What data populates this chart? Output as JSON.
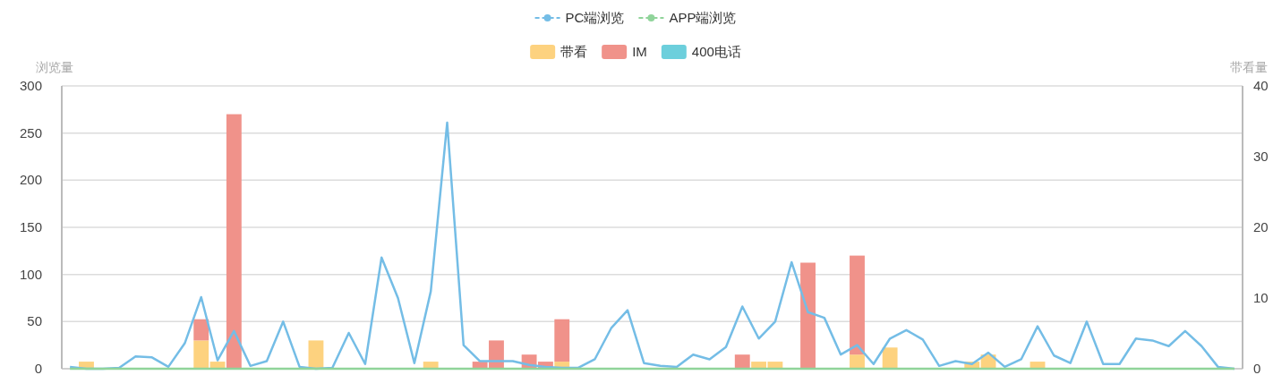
{
  "chart_data": {
    "type": "bar",
    "ylabel": "浏览量",
    "y2label": "带看量",
    "categories": [
      null,
      null,
      null,
      null,
      null,
      null,
      null,
      null,
      null,
      null,
      null,
      null,
      null,
      null,
      null,
      null,
      null,
      null,
      null,
      null,
      null,
      null,
      null,
      null,
      null,
      null,
      null,
      null,
      null,
      null,
      null,
      null,
      null,
      null,
      null,
      null,
      null,
      null,
      null,
      null,
      null,
      null,
      null,
      null,
      null,
      null,
      null,
      null,
      null,
      null,
      null,
      null,
      null,
      null,
      null,
      null,
      null,
      null,
      null,
      null,
      null,
      null,
      null,
      null,
      null,
      null,
      null,
      null,
      null,
      null,
      null,
      null
    ],
    "ylim": [
      0,
      300
    ],
    "yticks": [
      0,
      50,
      100,
      150,
      200,
      250,
      300
    ],
    "y2lim": [
      0,
      40
    ],
    "y2ticks": [
      0,
      10,
      20,
      30,
      40
    ],
    "grid": "y",
    "legend": "top",
    "stacked": true,
    "series": [
      {
        "name": "PC端浏览",
        "type": "line",
        "color": "#74bde6",
        "values": [
          2,
          0,
          0,
          1,
          13,
          12,
          2,
          27,
          76,
          9,
          40,
          3,
          8,
          50,
          2,
          0,
          1,
          38,
          5,
          118,
          75,
          6,
          82,
          261,
          25,
          8,
          8,
          8,
          4,
          2,
          1,
          1,
          10,
          43,
          62,
          6,
          3,
          2,
          15,
          10,
          23,
          66,
          32,
          50,
          113,
          60,
          54,
          15,
          25,
          5,
          32,
          41,
          31,
          3,
          8,
          5,
          17,
          2,
          10,
          45,
          14,
          6,
          50,
          5,
          5,
          32,
          30,
          24,
          40,
          24,
          2,
          0
        ]
      },
      {
        "name": "APP端浏览",
        "type": "line",
        "color": "#90d49a",
        "values": [
          0,
          0,
          0,
          0,
          0,
          0,
          0,
          0,
          0,
          0,
          0,
          0,
          0,
          0,
          0,
          0,
          0,
          0,
          0,
          0,
          0,
          0,
          0,
          0,
          0,
          0,
          0,
          0,
          0,
          0,
          0,
          0,
          0,
          0,
          0,
          0,
          0,
          0,
          0,
          0,
          0,
          0,
          0,
          0,
          0,
          0,
          0,
          0,
          0,
          0,
          0,
          0,
          0,
          0,
          0,
          0,
          0,
          0,
          0,
          0,
          0,
          0,
          0,
          0,
          0,
          0,
          0,
          0,
          0,
          0,
          0,
          0
        ]
      },
      {
        "name": "带看",
        "type": "bar",
        "axis": "y2",
        "color": "#fdd27f",
        "values": [
          0,
          1,
          0,
          0,
          0,
          0,
          0,
          0,
          4,
          1,
          0,
          0,
          0,
          0,
          0,
          4,
          0,
          0,
          0,
          0,
          0,
          0,
          1,
          0,
          0,
          0,
          0,
          0,
          0,
          0,
          1,
          0,
          0,
          0,
          0,
          0,
          0,
          0,
          0,
          0,
          0,
          0,
          1,
          1,
          0,
          0,
          0,
          0,
          2,
          0,
          3,
          0,
          0,
          0,
          0,
          1,
          2,
          0,
          0,
          1,
          0,
          0,
          0,
          0,
          0,
          0,
          0,
          0,
          0,
          0,
          0,
          0
        ]
      },
      {
        "name": "IM",
        "type": "bar",
        "axis": "y2",
        "color": "#f0928a",
        "values": [
          0,
          0,
          0,
          0,
          0,
          0,
          0,
          0,
          3,
          0,
          36,
          0,
          0,
          0,
          0,
          0,
          0,
          0,
          0,
          0,
          0,
          0,
          0,
          0,
          0,
          1,
          4,
          0,
          2,
          1,
          6,
          0,
          0,
          0,
          0,
          0,
          0,
          0,
          0,
          0,
          0,
          2,
          0,
          0,
          0,
          15,
          0,
          0,
          14,
          0,
          0,
          0,
          0,
          0,
          0,
          0,
          0,
          0,
          0,
          0,
          0,
          0,
          0,
          0,
          0,
          0,
          0,
          0,
          0,
          0,
          0,
          0
        ]
      },
      {
        "name": "400电话",
        "type": "bar",
        "axis": "y2",
        "color": "#6ccfdc",
        "values": [
          0,
          0,
          0,
          0,
          0,
          0,
          0,
          0,
          0,
          0,
          0,
          0,
          0,
          0,
          0,
          0,
          0,
          0,
          0,
          0,
          0,
          0,
          0,
          0,
          0,
          0,
          0,
          0,
          0,
          0,
          0,
          0,
          0,
          0,
          0,
          0,
          0,
          0,
          0,
          0,
          0,
          0,
          0,
          0,
          0,
          0,
          0,
          0,
          0,
          0,
          0,
          0,
          0,
          0,
          0,
          0,
          0,
          0,
          0,
          0,
          0,
          0,
          0,
          0,
          0,
          0,
          0,
          0,
          0,
          0,
          0,
          0
        ]
      }
    ]
  }
}
